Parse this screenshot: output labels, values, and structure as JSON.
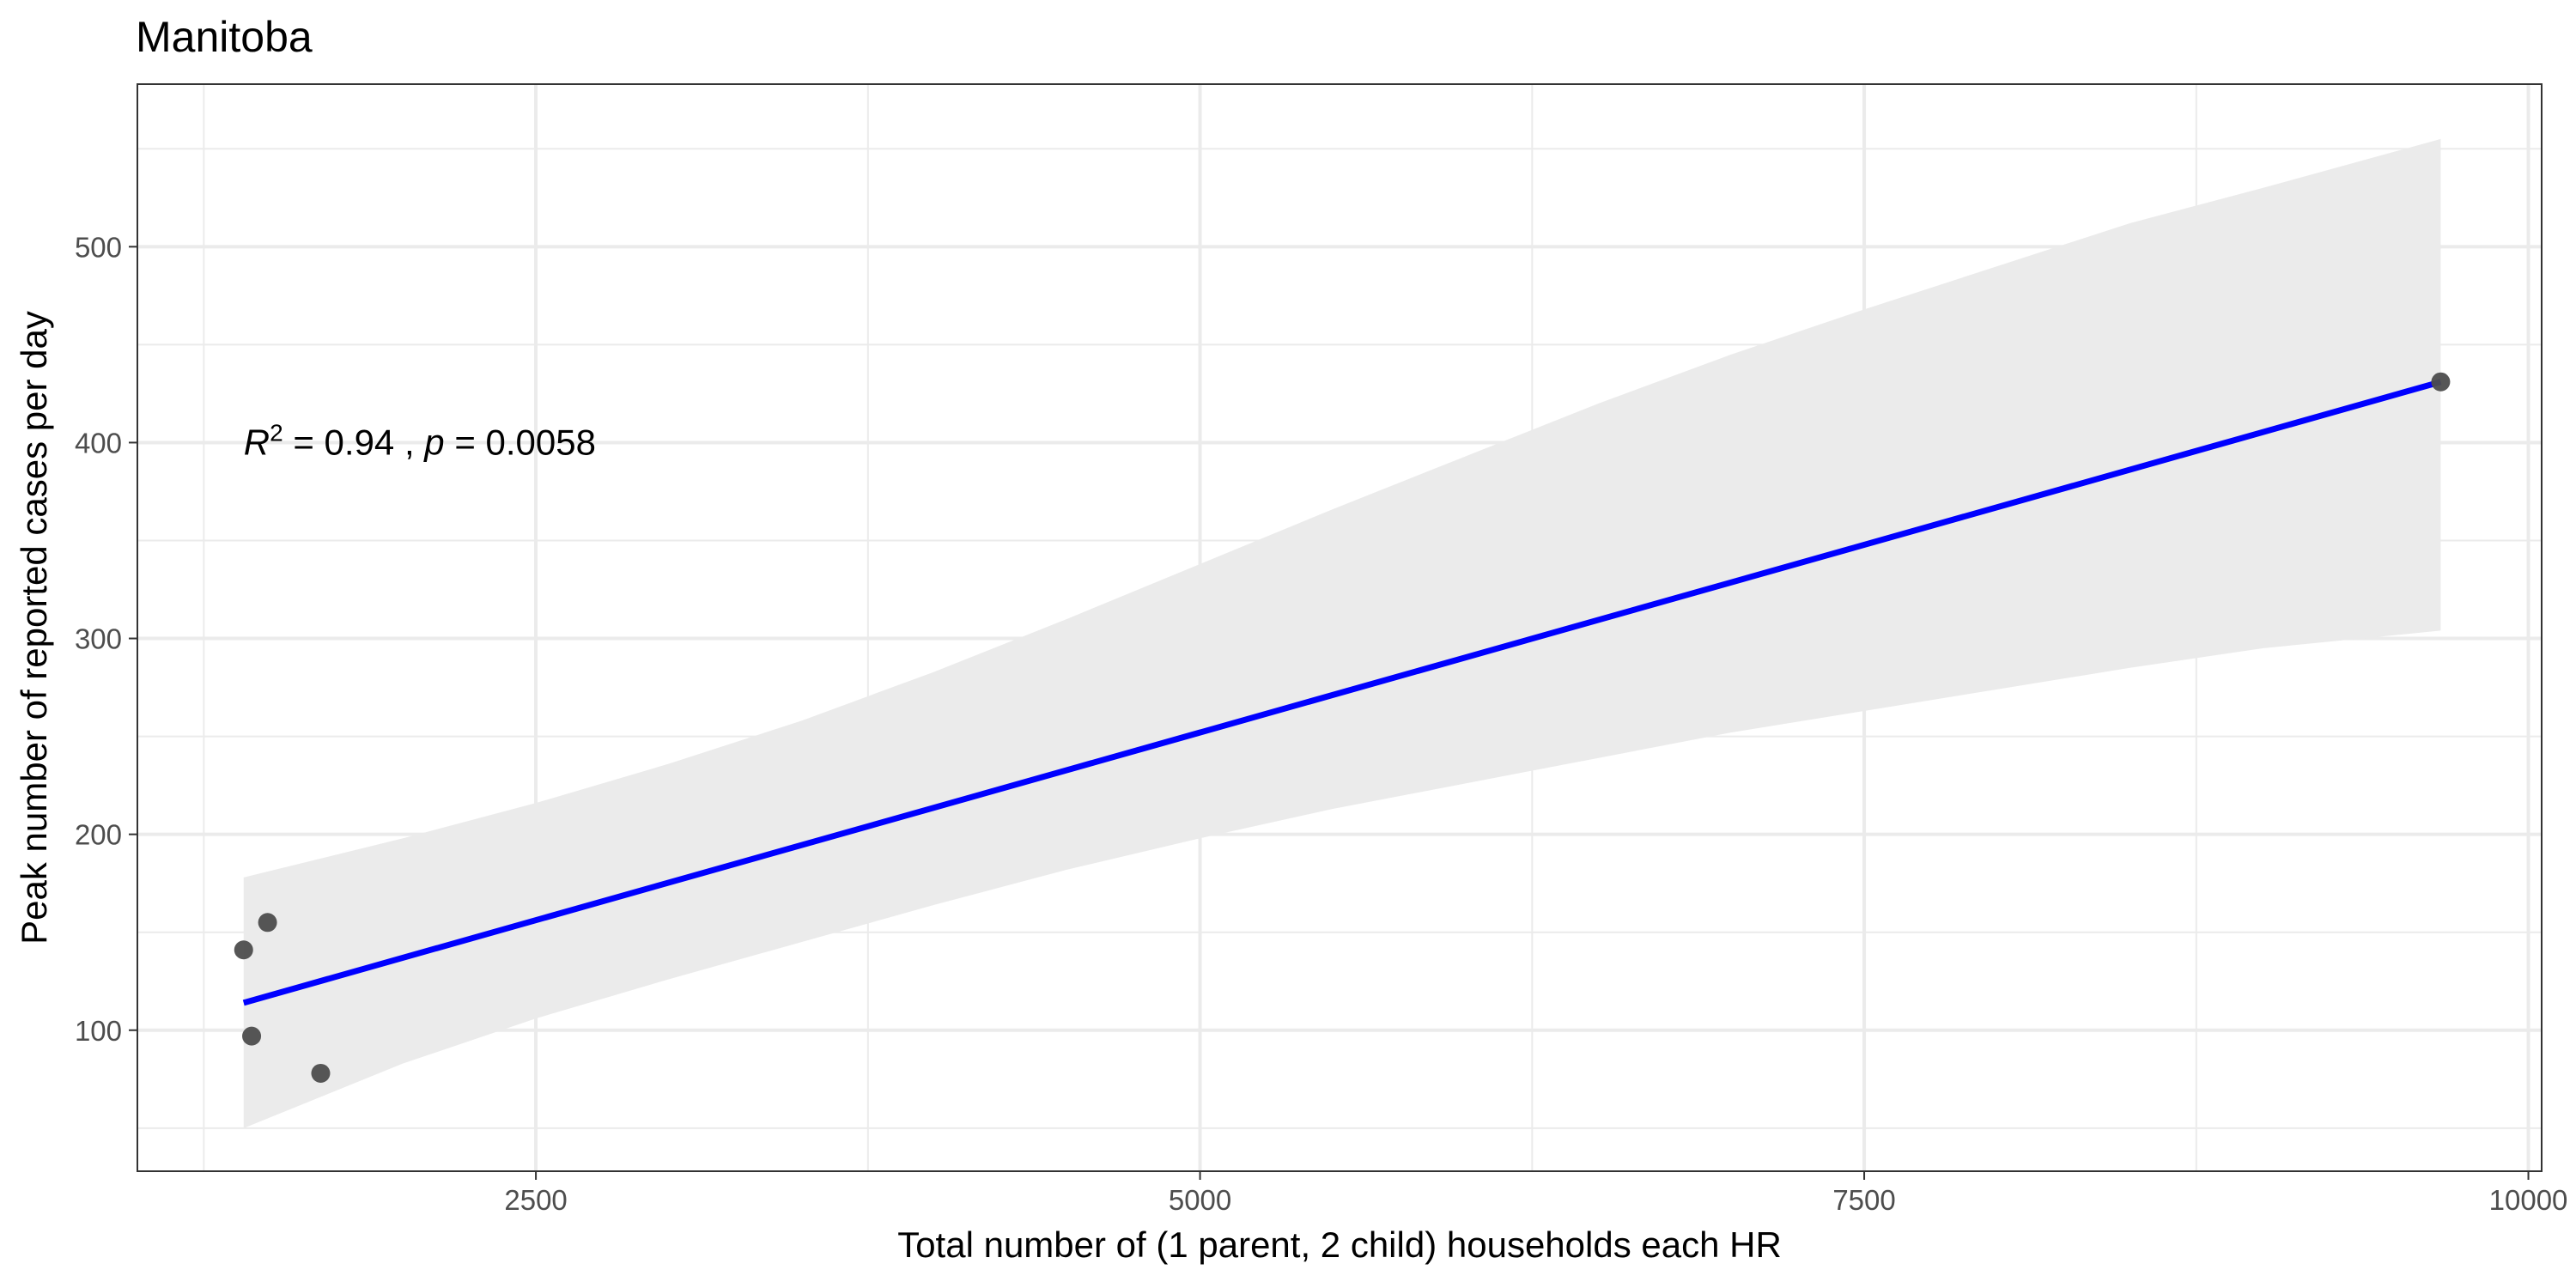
{
  "chart_data": {
    "type": "scatter",
    "title": "Manitoba",
    "xlabel": "Total number of (1 parent, 2 child) households each HR",
    "ylabel": "Peak number of reported cases per day",
    "xlim": [
      1000,
      10050
    ],
    "ylim": [
      28,
      583
    ],
    "x_ticks": [
      2500,
      5000,
      7500,
      10000
    ],
    "x_tick_labels": [
      "2500",
      "5000",
      "7500",
      "10000"
    ],
    "x_minor_ticks": [
      1250,
      3750,
      6250,
      8750
    ],
    "y_ticks": [
      100,
      200,
      300,
      400,
      500
    ],
    "y_tick_labels": [
      "100",
      "200",
      "300",
      "400",
      "500"
    ],
    "y_minor_ticks": [
      50,
      150,
      250,
      350,
      450,
      550
    ],
    "grid": true,
    "points": [
      {
        "x": 1400,
        "y": 141
      },
      {
        "x": 1430,
        "y": 97
      },
      {
        "x": 1490,
        "y": 155
      },
      {
        "x": 1690,
        "y": 78
      },
      {
        "x": 9670,
        "y": 431
      }
    ],
    "regression_line": {
      "x": [
        1400,
        9670
      ],
      "y": [
        114,
        431
      ],
      "color": "#0000ff"
    },
    "confidence_band": {
      "x": [
        1400,
        2000,
        2500,
        3000,
        3500,
        4000,
        4500,
        5000,
        5500,
        6000,
        6500,
        7000,
        7500,
        8000,
        8500,
        9000,
        9670
      ],
      "upper": [
        178,
        198,
        216,
        236,
        258,
        283,
        310,
        338,
        366,
        393,
        420,
        445,
        468,
        490,
        512,
        530,
        555
      ],
      "lower": [
        50,
        83,
        106,
        126,
        145,
        164,
        182,
        198,
        213,
        226,
        239,
        252,
        263,
        274,
        285,
        295,
        304
      ],
      "color": "#ebebeb"
    },
    "annotation": {
      "r_symbol": "R",
      "r_superscript": "2",
      "r_value": " = 0.94 , ",
      "p_symbol": "p",
      "p_value": " = 0.0058",
      "x": 1400,
      "y": 400
    },
    "point_color": "#4d4d4d"
  }
}
